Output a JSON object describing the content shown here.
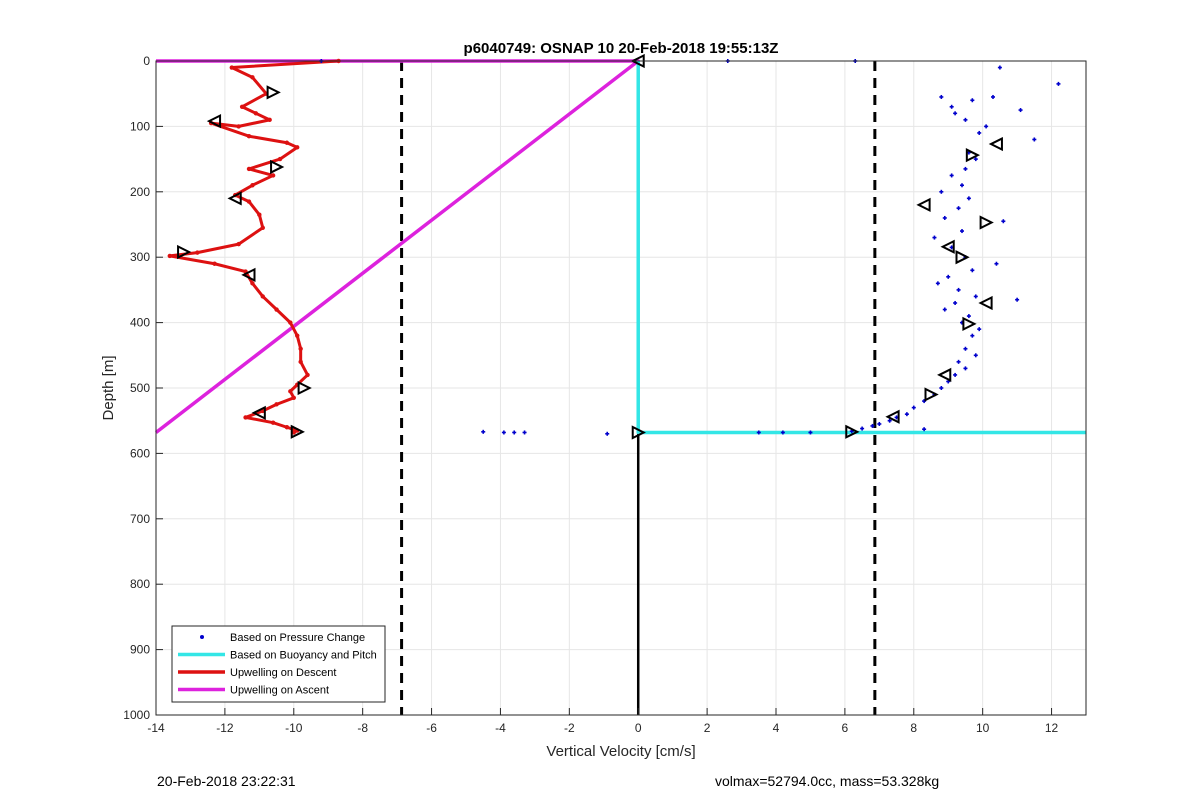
{
  "chart_data": {
    "type": "scatter",
    "title": "p6040749: OSNAP 10 20-Feb-2018 19:55:13Z",
    "xlabel": "Vertical Velocity [cm/s]",
    "ylabel": "Depth [m]",
    "xlim": [
      -14,
      13
    ],
    "ylim": [
      0,
      1000
    ],
    "y_reversed": true,
    "grid": true,
    "x_ticks": [
      -14,
      -12,
      -10,
      -8,
      -6,
      -4,
      -2,
      0,
      2,
      4,
      6,
      8,
      10,
      12
    ],
    "y_ticks": [
      0,
      100,
      200,
      300,
      400,
      500,
      600,
      700,
      800,
      900,
      1000
    ],
    "legend_position": "bottom-left",
    "legend": [
      {
        "label": "Based on Pressure Change",
        "color": "#0000cc",
        "style": "dot"
      },
      {
        "label": "Based on Buoyancy and Pitch",
        "color": "#33e6e6",
        "style": "line"
      },
      {
        "label": "Upwelling on Descent",
        "color": "#dd1111",
        "style": "line"
      },
      {
        "label": "Upwelling on Ascent",
        "color": "#dd22dd",
        "style": "line"
      }
    ],
    "reference_lines_x": [
      -6.87,
      6.87
    ],
    "zero_line_x": 0,
    "series": [
      {
        "name": "Based on Pressure Change",
        "color": "#0000cc",
        "x": [
          2.6,
          6.3,
          12.2,
          10.5,
          10.3,
          9.7,
          11.1,
          8.8,
          9.1,
          9.2,
          9.5,
          10.1,
          9.9,
          11.5,
          9.6,
          9.8,
          9.5,
          9.1,
          9.4,
          8.8,
          9.6,
          9.3,
          8.9,
          10.6,
          9.4,
          8.6,
          9.1,
          9.5,
          10.4,
          9.7,
          9.0,
          8.7,
          9.3,
          9.8,
          9.2,
          8.9,
          9.6,
          9.4,
          9.9,
          11.0,
          9.7,
          9.5,
          9.8,
          9.3,
          9.5,
          9.2,
          9.0,
          8.8,
          8.6,
          8.3,
          8.0,
          7.8,
          7.5,
          7.3,
          7.0,
          6.8,
          6.5,
          6.2,
          8.3,
          -9.2,
          -4.5,
          -3.9,
          -3.6,
          -3.3,
          -0.9,
          3.5,
          4.2,
          5.0
        ],
        "y": [
          0,
          0,
          35,
          10,
          55,
          60,
          75,
          55,
          70,
          80,
          90,
          100,
          110,
          120,
          140,
          150,
          165,
          175,
          190,
          200,
          210,
          225,
          240,
          245,
          260,
          270,
          285,
          300,
          310,
          320,
          330,
          340,
          350,
          360,
          370,
          380,
          390,
          400,
          410,
          365,
          420,
          440,
          450,
          460,
          470,
          480,
          490,
          500,
          510,
          520,
          530,
          540,
          545,
          550,
          555,
          558,
          562,
          566,
          563,
          0,
          567,
          568,
          568,
          568,
          570,
          568,
          568,
          568
        ]
      },
      {
        "name": "Based on Buoyancy and Pitch",
        "color": "#33e6e6",
        "x": [
          0,
          0,
          13
        ],
        "y": [
          0,
          568,
          568
        ]
      },
      {
        "name": "Upwelling on Descent",
        "color": "#dd1111",
        "x": [
          -8.7,
          -11.8,
          -11.2,
          -10.8,
          -11.5,
          -11.1,
          -10.7,
          -11.6,
          -12.4,
          -11.3,
          -10.2,
          -9.9,
          -10.4,
          -11.3,
          -10.6,
          -11.2,
          -11.7,
          -11.3,
          -11.0,
          -10.9,
          -11.6,
          -12.8,
          -13.6,
          -12.3,
          -11.4,
          -11.2,
          -10.9,
          -10.5,
          -10.1,
          -9.9,
          -9.8,
          -9.8,
          -9.6,
          -9.9,
          -10.1,
          -10.0,
          -10.5,
          -10.9,
          -11.4,
          -10.6,
          -10.2,
          -9.9,
          -10.0
        ],
        "y": [
          0,
          10,
          25,
          50,
          70,
          80,
          90,
          100,
          95,
          115,
          125,
          132,
          150,
          165,
          175,
          190,
          205,
          215,
          235,
          255,
          280,
          293,
          298,
          310,
          322,
          340,
          360,
          380,
          400,
          420,
          440,
          460,
          480,
          495,
          505,
          515,
          525,
          535,
          545,
          553,
          560,
          565,
          568
        ]
      },
      {
        "name": "Upwelling on Ascent",
        "color": "#dd22dd",
        "x": [
          -14,
          0,
          -14
        ],
        "y": [
          0,
          0,
          568
        ]
      }
    ],
    "markers": {
      "descent": {
        "x": [
          0,
          -10.6,
          -12.3,
          -10.5,
          -11.7,
          -13.2,
          -11.3,
          -9.7,
          -11.0,
          -9.9
        ],
        "y": [
          0,
          48,
          92,
          162,
          210,
          292,
          327,
          500,
          538,
          567
        ]
      },
      "ascent": {
        "x": [
          6.2,
          7.4,
          8.5,
          8.9,
          9.6,
          10.1,
          9.4,
          9.0,
          10.1,
          8.3,
          9.7,
          10.4,
          0
        ],
        "y": [
          567,
          544,
          510,
          480,
          402,
          370,
          300,
          284,
          247,
          220,
          144,
          127,
          568
        ]
      }
    }
  },
  "footer": {
    "left": "20-Feb-2018 23:22:31",
    "right": "volmax=52794.0cc, mass=53.328kg"
  }
}
